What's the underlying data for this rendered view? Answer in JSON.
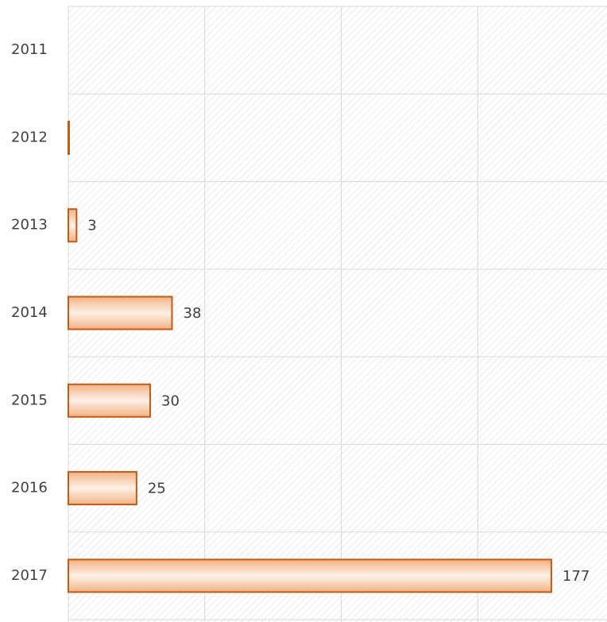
{
  "chart_data": {
    "type": "hbar",
    "categories": [
      "2011",
      "2012",
      "2013",
      "2014",
      "2015",
      "2016",
      "2017"
    ],
    "values": [
      null,
      0,
      3,
      38,
      30,
      25,
      177
    ],
    "value_labels": [
      null,
      null,
      "3",
      "38",
      "30",
      "25",
      "177"
    ],
    "color": "#c55a11",
    "xlim": [
      0,
      197.4
    ],
    "xticks": [
      0,
      50,
      100,
      150
    ],
    "show_x_tick_labels": false,
    "grid": true
  }
}
